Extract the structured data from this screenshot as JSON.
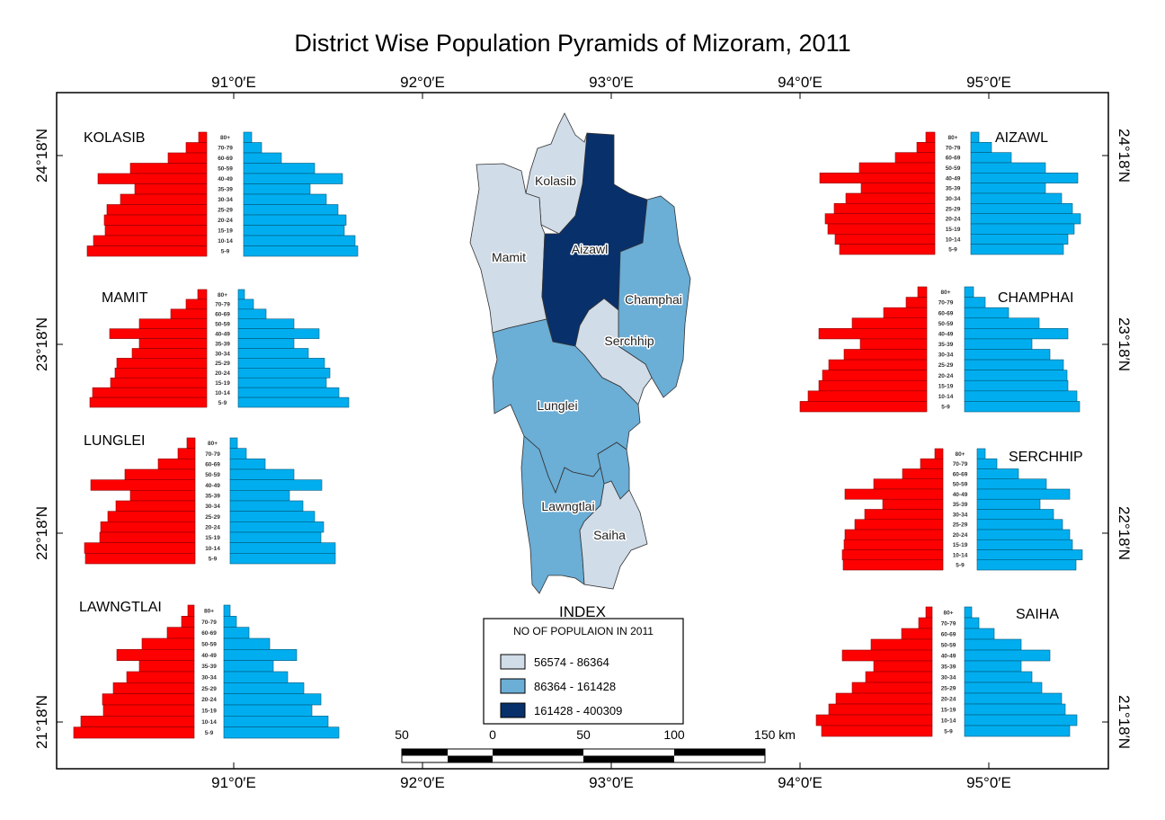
{
  "title": "District Wise Population Pyramids of Mizoram, 2011",
  "longitude_labels": [
    "91°0′E",
    "92°0′E",
    "93°0′E",
    "94°0′E",
    "95°0′E"
  ],
  "latitude_labels": [
    "24°18′N",
    "23°18′N",
    "22°18′N",
    "21°18′N"
  ],
  "colors": {
    "male": "#ff0000",
    "female": "#00aeef",
    "class1": "#d0dce8",
    "class2": "#6baed6",
    "class3": "#08306b"
  },
  "age_groups": [
    "80+",
    "70-79",
    "60-69",
    "50-59",
    "40-49",
    "35-39",
    "30-34",
    "25-29",
    "20-24",
    "15-19",
    "10-14",
    "5-9"
  ],
  "map_labels": {
    "kolasib": "Kolasib",
    "mamit": "Mamit",
    "aizawl": "Aizawl",
    "champhai": "Champhai",
    "serchhip": "Serchhip",
    "lunglei": "Lunglei",
    "lawngtlai": "Lawngtlai",
    "saiha": "Saiha"
  },
  "district_classes": {
    "kolasib": 1,
    "mamit": 1,
    "aizawl": 3,
    "champhai": 2,
    "serchhip": 1,
    "lunglei": 2,
    "lawngtlai": 2,
    "saiha": 1
  },
  "pyramids": [
    {
      "id": "kolasib",
      "name": "KOLASIB",
      "left": [
        9,
        23,
        43,
        85,
        121,
        80,
        96,
        111,
        114,
        113,
        126,
        133
      ],
      "right": [
        9,
        20,
        42,
        79,
        110,
        74,
        92,
        105,
        114,
        112,
        124,
        127
      ]
    },
    {
      "id": "mamit",
      "name": "MAMIT",
      "left": [
        10,
        23,
        40,
        75,
        108,
        75,
        83,
        100,
        102,
        107,
        127,
        130
      ],
      "right": [
        7,
        17,
        31,
        62,
        90,
        62,
        78,
        96,
        102,
        98,
        112,
        123
      ]
    },
    {
      "id": "lunglei",
      "name": "LUNGLEI",
      "left": [
        9,
        19,
        41,
        78,
        116,
        72,
        88,
        97,
        105,
        106,
        123,
        122
      ],
      "right": [
        8,
        18,
        39,
        71,
        102,
        66,
        81,
        94,
        104,
        101,
        117,
        117
      ]
    },
    {
      "id": "lawngtlai",
      "name": "LAWNGTLAI",
      "left": [
        7,
        14,
        30,
        58,
        86,
        61,
        75,
        90,
        102,
        101,
        126,
        134
      ],
      "right": [
        7,
        14,
        28,
        51,
        81,
        55,
        71,
        89,
        108,
        98,
        116,
        128
      ]
    },
    {
      "id": "aizawl",
      "name": "AIZAWL",
      "left": [
        10,
        20,
        44,
        84,
        128,
        82,
        99,
        112,
        122,
        119,
        111,
        106
      ],
      "right": [
        9,
        23,
        45,
        83,
        119,
        83,
        101,
        113,
        122,
        115,
        108,
        103
      ]
    },
    {
      "id": "champhai",
      "name": "CHAMPHAI",
      "left": [
        10,
        23,
        48,
        83,
        120,
        74,
        92,
        109,
        116,
        120,
        132,
        141
      ],
      "right": [
        10,
        23,
        49,
        83,
        115,
        75,
        95,
        110,
        114,
        115,
        125,
        128
      ]
    },
    {
      "id": "serchhip",
      "name": "SERCHHIP",
      "left": [
        9,
        25,
        45,
        77,
        109,
        67,
        87,
        98,
        109,
        110,
        112,
        111
      ],
      "right": [
        9,
        22,
        46,
        77,
        103,
        70,
        85,
        95,
        103,
        106,
        117,
        110
      ]
    },
    {
      "id": "saiha",
      "name": "SAIHA",
      "left": [
        7,
        15,
        34,
        68,
        100,
        65,
        74,
        89,
        107,
        115,
        129,
        123
      ],
      "right": [
        8,
        16,
        33,
        63,
        95,
        63,
        75,
        86,
        108,
        112,
        125,
        117
      ]
    }
  ],
  "legend": {
    "index_label": "INDEX",
    "title": "NO OF POPULAION IN 2011",
    "classes": [
      "56574 - 86364",
      "86364 - 161428",
      "161428 - 400309"
    ]
  },
  "scale_bar": {
    "labels": [
      "50",
      "0",
      "50",
      "100",
      "150 km"
    ]
  }
}
